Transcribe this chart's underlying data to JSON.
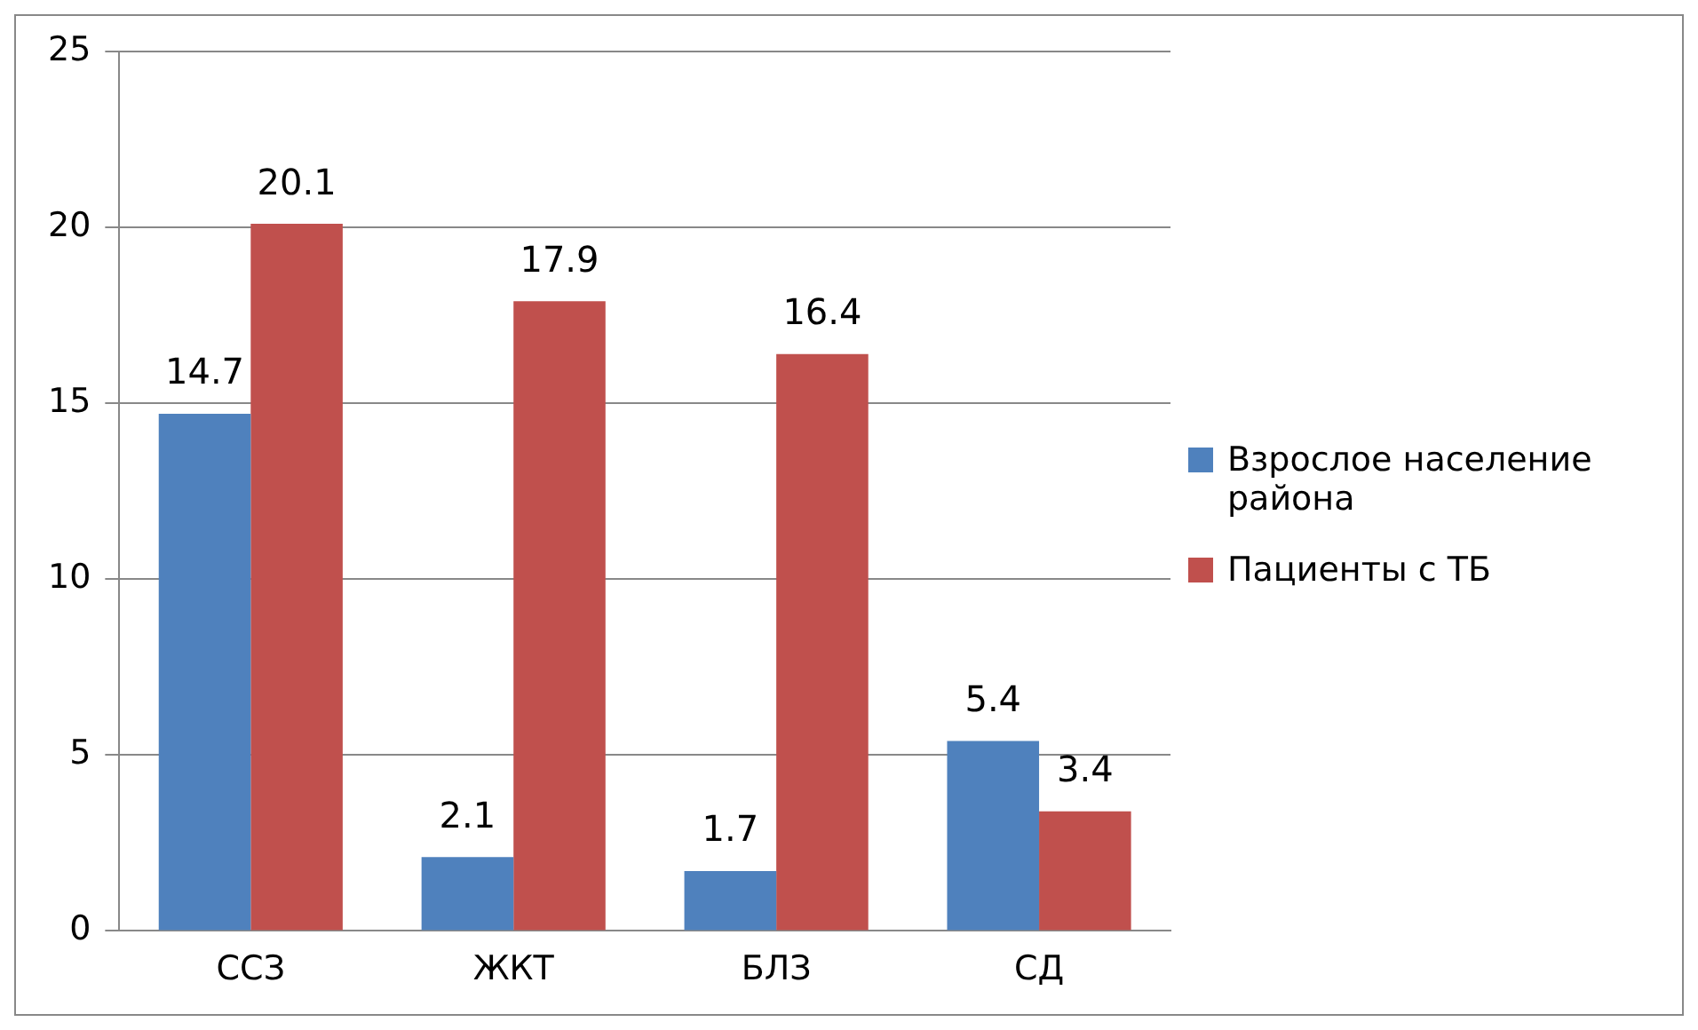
{
  "chart_data": {
    "type": "bar",
    "categories": [
      "ССЗ",
      "ЖКТ",
      "БЛЗ",
      "СД"
    ],
    "series": [
      {
        "name": "Взрослое население района",
        "color": "#4f81bd",
        "values": [
          14.7,
          2.1,
          1.7,
          5.4
        ]
      },
      {
        "name": "Пациенты с ТБ",
        "color": "#c0504d",
        "values": [
          20.1,
          17.9,
          16.4,
          3.4
        ]
      }
    ],
    "ylim": [
      0,
      25
    ],
    "yticks": [
      0,
      5,
      10,
      15,
      20,
      25
    ],
    "grid": "y",
    "legend": "right",
    "data_labels": true
  }
}
